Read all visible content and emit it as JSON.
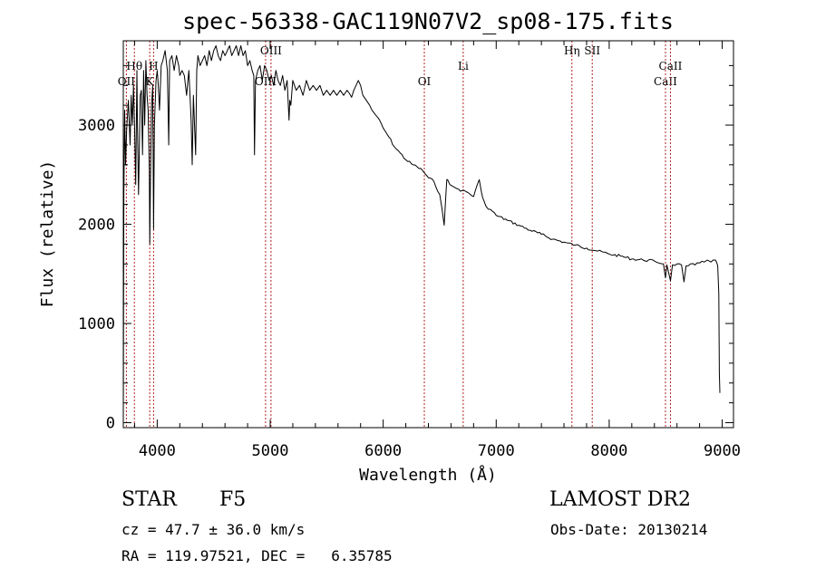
{
  "chart_data": {
    "type": "line",
    "title": "spec-56338-GAC119N07V2_sp08-175.fits",
    "xlabel": "Wavelength (Å)",
    "ylabel": "Flux (relative)",
    "xlim": [
      3700,
      9100
    ],
    "ylim": [
      -50,
      3850
    ],
    "x_ticks": [
      4000,
      5000,
      6000,
      7000,
      8000,
      9000
    ],
    "x_tick_labels": [
      "4000",
      "5000",
      "6000",
      "7000",
      "8000",
      "9000"
    ],
    "y_ticks": [
      0,
      1000,
      2000,
      3000
    ],
    "y_tick_labels": [
      "0",
      "1000",
      "2000",
      "3000"
    ],
    "grid": false,
    "line_color": "#000000",
    "marker_color": "#b22222",
    "series": [
      {
        "x": [
          3700,
          3705,
          3712,
          3720,
          3730,
          3745,
          3760,
          3770,
          3780,
          3790,
          3800,
          3810,
          3820,
          3825,
          3835,
          3850,
          3860,
          3870,
          3880,
          3889,
          3900,
          3910,
          3920,
          3930,
          3934,
          3940,
          3950,
          3960,
          3968,
          3975,
          3990,
          4000,
          4010,
          4020,
          4035,
          4050,
          4070,
          4090,
          4102,
          4110,
          4130,
          4150,
          4170,
          4190,
          4200,
          4220,
          4240,
          4260,
          4280,
          4300,
          4310,
          4320,
          4340,
          4350,
          4360,
          4380,
          4400,
          4420,
          4440,
          4460,
          4480,
          4500,
          4520,
          4540,
          4560,
          4580,
          4600,
          4620,
          4640,
          4660,
          4680,
          4700,
          4720,
          4740,
          4760,
          4780,
          4800,
          4820,
          4840,
          4855,
          4861,
          4870,
          4890,
          4910,
          4930,
          4950,
          4970,
          4990,
          5010,
          5030,
          5050,
          5070,
          5090,
          5110,
          5130,
          5150,
          5167,
          5173,
          5183,
          5200,
          5230,
          5260,
          5290,
          5320,
          5350,
          5380,
          5410,
          5440,
          5470,
          5500,
          5530,
          5560,
          5590,
          5620,
          5650,
          5680,
          5700,
          5720,
          5740,
          5760,
          5780,
          5800,
          5820,
          5850,
          5880,
          5900,
          5950,
          6000,
          6050,
          6100,
          6150,
          6200,
          6250,
          6300,
          6350,
          6400,
          6450,
          6500,
          6540,
          6555,
          6563,
          6570,
          6590,
          6620,
          6650,
          6700,
          6750,
          6800,
          6850,
          6870,
          6880,
          6890,
          6910,
          6950,
          7000,
          7100,
          7200,
          7300,
          7400,
          7500,
          7600,
          7700,
          7800,
          7900,
          8000,
          8100,
          8200,
          8300,
          8400,
          8480,
          8498,
          8510,
          8542,
          8560,
          8600,
          8640,
          8662,
          8680,
          8720,
          8760,
          8800,
          8840,
          8870,
          8900,
          8920,
          8940,
          8950,
          8960,
          8970,
          8975,
          8980
        ],
        "y": [
          40,
          2300,
          3150,
          2600,
          2950,
          3250,
          2800,
          3300,
          3000,
          3400,
          2950,
          2400,
          3550,
          3000,
          2300,
          3300,
          3350,
          2700,
          3550,
          3000,
          3650,
          3300,
          3150,
          2550,
          1800,
          2400,
          3200,
          3400,
          1950,
          3000,
          3450,
          3550,
          3400,
          3150,
          3600,
          3650,
          3750,
          3550,
          2800,
          3650,
          3700,
          3550,
          3700,
          3600,
          3500,
          3550,
          3500,
          3300,
          3550,
          3050,
          2600,
          3300,
          2700,
          3550,
          3700,
          3600,
          3650,
          3700,
          3600,
          3750,
          3650,
          3750,
          3800,
          3700,
          3650,
          3750,
          3700,
          3750,
          3800,
          3700,
          3750,
          3800,
          3700,
          3800,
          3700,
          3750,
          3600,
          3650,
          3550,
          3500,
          2700,
          3450,
          3550,
          3600,
          3450,
          3600,
          3550,
          3450,
          3500,
          3400,
          3550,
          3450,
          3400,
          3500,
          3350,
          3450,
          3050,
          3250,
          3200,
          3450,
          3350,
          3400,
          3300,
          3450,
          3350,
          3400,
          3350,
          3400,
          3300,
          3350,
          3300,
          3350,
          3300,
          3350,
          3300,
          3350,
          3320,
          3280,
          3350,
          3400,
          3450,
          3400,
          3300,
          3250,
          3200,
          3150,
          3080,
          2970,
          2880,
          2780,
          2720,
          2650,
          2610,
          2580,
          2540,
          2470,
          2430,
          2300,
          1990,
          2300,
          2450,
          2450,
          2400,
          2380,
          2360,
          2340,
          2320,
          2280,
          2450,
          2320,
          2270,
          2240,
          2180,
          2150,
          2090,
          2040,
          1990,
          1940,
          1900,
          1850,
          1820,
          1790,
          1760,
          1730,
          1700,
          1680,
          1650,
          1640,
          1630,
          1600,
          1460,
          1590,
          1430,
          1590,
          1600,
          1590,
          1420,
          1580,
          1600,
          1590,
          1610,
          1620,
          1640,
          1620,
          1640,
          1640,
          1620,
          1580,
          1300,
          500,
          300
        ]
      }
    ],
    "line_markers": [
      {
        "label": "OII",
        "x": 3727,
        "row": 3
      },
      {
        "label": "Hθ",
        "x": 3798,
        "row": 2
      },
      {
        "label": "K",
        "x": 3934,
        "row": 3
      },
      {
        "label": "H",
        "x": 3968,
        "row": 2
      },
      {
        "label": "OIII",
        "x": 4959,
        "row": 3
      },
      {
        "label": "OIII",
        "x": 5007,
        "row": 1
      },
      {
        "label": "OI",
        "x": 6364,
        "row": 3
      },
      {
        "label": "Li",
        "x": 6708,
        "row": 2
      },
      {
        "label": "Hη",
        "x": 7670,
        "row": 1
      },
      {
        "label": "SII",
        "x": 7850,
        "row": 1
      },
      {
        "label": "CaII",
        "x": 8498,
        "row": 3
      },
      {
        "label": "CaII",
        "x": 8542,
        "row": 2
      }
    ]
  },
  "info": {
    "object_type": "STAR",
    "subclass": "F5",
    "survey": "LAMOST DR2",
    "redshift_line": "cz = 47.7 ± 36.0 km/s",
    "obs_date": "Obs-Date: 20130214",
    "coords": "RA = 119.97521, DEC =   6.35785"
  }
}
